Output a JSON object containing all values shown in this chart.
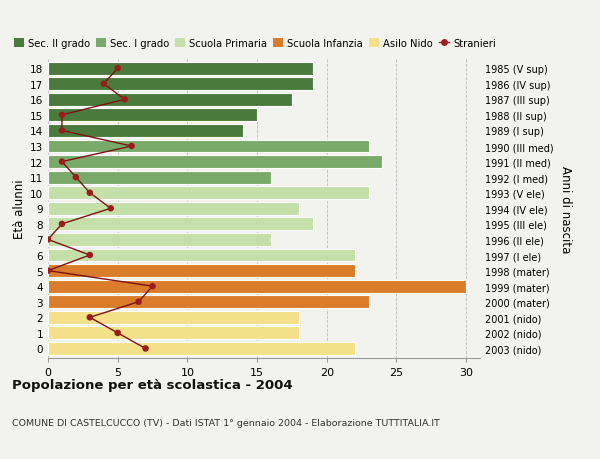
{
  "ages": [
    18,
    17,
    16,
    15,
    14,
    13,
    12,
    11,
    10,
    9,
    8,
    7,
    6,
    5,
    4,
    3,
    2,
    1,
    0
  ],
  "bar_values": [
    19,
    19,
    17.5,
    15,
    14,
    23,
    24,
    16,
    23,
    18,
    19,
    16,
    22,
    22,
    30,
    23,
    18,
    18,
    22
  ],
  "bar_colors": [
    "#4a7a3d",
    "#4a7a3d",
    "#4a7a3d",
    "#4a7a3d",
    "#4a7a3d",
    "#7aaa6a",
    "#7aaa6a",
    "#7aaa6a",
    "#c5dfa8",
    "#c5dfa8",
    "#c5dfa8",
    "#c5dfa8",
    "#c5dfa8",
    "#d97c2b",
    "#d97c2b",
    "#d97c2b",
    "#f5e08a",
    "#f5e08a",
    "#f5e08a"
  ],
  "right_labels": [
    "1985 (V sup)",
    "1986 (IV sup)",
    "1987 (III sup)",
    "1988 (II sup)",
    "1989 (I sup)",
    "1990 (III med)",
    "1991 (II med)",
    "1992 (I med)",
    "1993 (V ele)",
    "1994 (IV ele)",
    "1995 (III ele)",
    "1996 (II ele)",
    "1997 (I ele)",
    "1998 (mater)",
    "1999 (mater)",
    "2000 (mater)",
    "2001 (nido)",
    "2002 (nido)",
    "2003 (nido)"
  ],
  "stranieri_x": [
    5,
    4,
    5.5,
    1,
    1,
    6,
    1,
    2,
    3,
    4.5,
    1,
    0,
    3,
    0,
    7.5,
    6.5,
    3,
    5,
    7
  ],
  "legend_labels": [
    "Sec. II grado",
    "Sec. I grado",
    "Scuola Primaria",
    "Scuola Infanzia",
    "Asilo Nido",
    "Stranieri"
  ],
  "legend_colors": [
    "#4a7a3d",
    "#7aaa6a",
    "#c5dfa8",
    "#d97c2b",
    "#f5e08a",
    "#9b2020"
  ],
  "title": "Popolazione per età scolastica - 2004",
  "subtitle": "COMUNE DI CASTELCUCCO (TV) - Dati ISTAT 1° gennaio 2004 - Elaborazione TUTTITALIA.IT",
  "xlabel_left": "Età alunni",
  "xlabel_right": "Anni di nascita",
  "xlim": [
    0,
    31
  ],
  "ylim": [
    -0.6,
    18.6
  ],
  "background_color": "#f2f2ee"
}
